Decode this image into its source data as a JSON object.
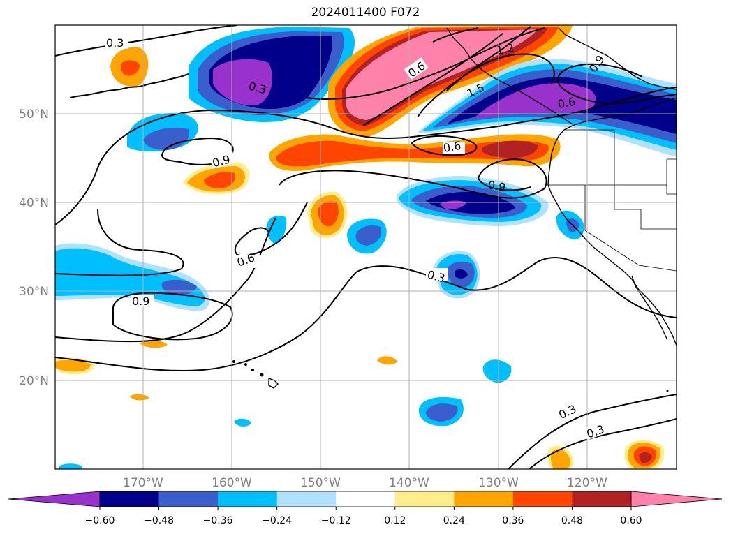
{
  "title": "2024011400 F072",
  "lat_labels": [
    "50°N",
    "40°N",
    "30°N",
    "20°N"
  ],
  "lon_labels": [
    "170°W",
    "160°W",
    "150°W",
    "140°W",
    "130°W",
    "120°W"
  ],
  "contour_labels": [
    "0.3",
    "0.3",
    "0.6",
    "1.2",
    "1.5",
    "0.9",
    "0.9",
    "0.6",
    "0.6",
    "0.9",
    "0.6",
    "0.9",
    "0.3",
    "0.3",
    "0.3"
  ],
  "colorbar": {
    "ticks": [
      "−0.60",
      "−0.48",
      "−0.36",
      "−0.24",
      "−0.12",
      "0.12",
      "0.24",
      "0.36",
      "0.48",
      "0.60"
    ],
    "colors": [
      "#9932cc",
      "#00008b",
      "#3a5fcd",
      "#00bfff",
      "#b0e2ff",
      "#ffffff",
      "#ffec8b",
      "#ffa500",
      "#ff4500",
      "#b22222",
      "#ff82ab"
    ]
  }
}
